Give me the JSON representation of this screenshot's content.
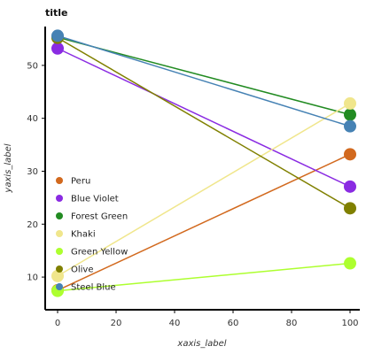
{
  "chart_data": {
    "type": "line",
    "title": "title",
    "xlabel": "xaxis_label",
    "ylabel": "yaxis_label",
    "xlim": [
      0,
      100
    ],
    "ylim": [
      6,
      56
    ],
    "x_ticks": [
      0,
      20,
      40,
      60,
      80,
      100
    ],
    "y_ticks": [
      10,
      20,
      30,
      40,
      50
    ],
    "grid": false,
    "legend_position": "left",
    "series": [
      {
        "name": "Peru",
        "color": "#d2691e",
        "x": [
          0,
          100
        ],
        "y": [
          7.5,
          33.2
        ]
      },
      {
        "name": "Blue Violet",
        "color": "#8a2be2",
        "x": [
          0,
          100
        ],
        "y": [
          53.2,
          27.1
        ]
      },
      {
        "name": "Forest Green",
        "color": "#228b22",
        "x": [
          0,
          100
        ],
        "y": [
          55.3,
          40.7
        ]
      },
      {
        "name": "Khaki",
        "color": "#f0e68c",
        "x": [
          0,
          100
        ],
        "y": [
          10.2,
          42.8
        ]
      },
      {
        "name": "Green Yellow",
        "color": "#adff2f",
        "x": [
          0,
          100
        ],
        "y": [
          7.4,
          12.6
        ]
      },
      {
        "name": "Olive",
        "color": "#808000",
        "x": [
          0,
          100
        ],
        "y": [
          55.2,
          23.0
        ]
      },
      {
        "name": "Steel Blue",
        "color": "#4682b4",
        "x": [
          0,
          100
        ],
        "y": [
          55.6,
          38.5
        ]
      }
    ]
  }
}
